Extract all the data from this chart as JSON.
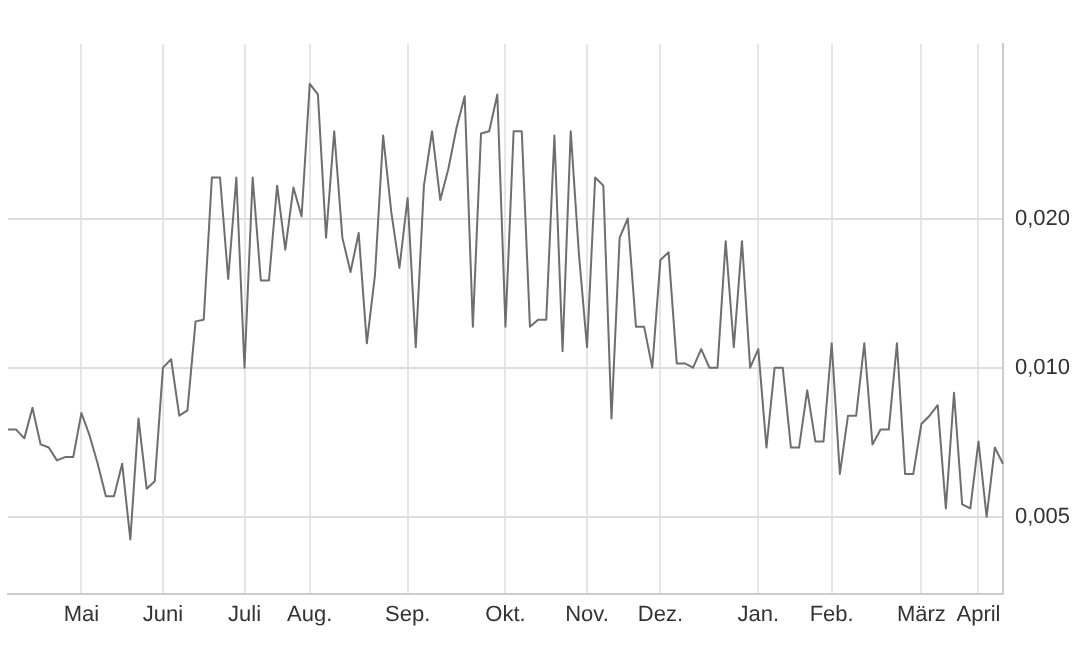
{
  "chart_data": {
    "type": "line",
    "categories": [
      null,
      null,
      null,
      null,
      null,
      null,
      null,
      null,
      null,
      "Mai",
      null,
      null,
      null,
      null,
      null,
      null,
      null,
      null,
      null,
      "Juni",
      null,
      null,
      null,
      null,
      null,
      null,
      null,
      null,
      null,
      "Juli",
      null,
      null,
      null,
      null,
      null,
      null,
      null,
      "Aug.",
      null,
      null,
      null,
      null,
      null,
      null,
      null,
      null,
      null,
      null,
      null,
      "Sep.",
      null,
      null,
      null,
      null,
      null,
      null,
      null,
      null,
      null,
      null,
      null,
      "Okt.",
      null,
      null,
      null,
      null,
      null,
      null,
      null,
      null,
      null,
      "Nov.",
      null,
      null,
      null,
      null,
      null,
      null,
      null,
      null,
      "Dez.",
      null,
      null,
      null,
      null,
      null,
      null,
      null,
      null,
      null,
      null,
      null,
      "Jan.",
      null,
      null,
      null,
      null,
      null,
      null,
      null,
      null,
      "Feb.",
      null,
      null,
      null,
      null,
      null,
      null,
      null,
      null,
      null,
      null,
      "März",
      null,
      null,
      null,
      null,
      null,
      null,
      "April",
      null,
      null,
      null
    ],
    "series": [
      {
        "color": "#6e6e6e",
        "values": [
          0.0075,
          0.0075,
          0.0072,
          0.0083,
          0.007,
          0.0069,
          0.0065,
          0.0066,
          0.0066,
          0.0081,
          0.0073,
          0.0064,
          0.0055,
          0.0055,
          0.0064,
          0.0045,
          0.0079,
          0.0057,
          0.0059,
          0.01,
          0.0104,
          0.008,
          0.0082,
          0.0124,
          0.0125,
          0.0242,
          0.0242,
          0.0151,
          0.0242,
          0.01,
          0.0242,
          0.015,
          0.015,
          0.0233,
          0.0173,
          0.0231,
          0.0202,
          0.0374,
          0.0356,
          0.0183,
          0.03,
          0.0183,
          0.0156,
          0.0187,
          0.0112,
          0.0154,
          0.0294,
          0.0206,
          0.0159,
          0.022,
          0.011,
          0.0233,
          0.03,
          0.0218,
          0.0252,
          0.0305,
          0.0353,
          0.0121,
          0.0297,
          0.03,
          0.0356,
          0.0121,
          0.03,
          0.03,
          0.0121,
          0.0125,
          0.0125,
          0.0294,
          0.0108,
          0.03,
          0.017,
          0.011,
          0.0242,
          0.0233,
          0.0079,
          0.0183,
          0.02,
          0.0121,
          0.0121,
          0.01,
          0.0165,
          0.0171,
          0.0102,
          0.0102,
          0.01,
          0.0109,
          0.01,
          0.01,
          0.018,
          0.011,
          0.018,
          0.01,
          0.0109,
          0.0069,
          0.01,
          0.01,
          0.0069,
          0.0069,
          0.009,
          0.0071,
          0.0071,
          0.0112,
          0.0061,
          0.008,
          0.008,
          0.0112,
          0.007,
          0.0075,
          0.0075,
          0.0112,
          0.0061,
          0.0061,
          0.0077,
          0.008,
          0.0084,
          0.0052,
          0.0089,
          0.0053,
          0.0052,
          0.0071,
          0.005,
          0.0069,
          0.0064
        ]
      }
    ],
    "log": "y",
    "ylim": [
      0.0035,
      0.045
    ],
    "yticks": [
      {
        "value": 0.005,
        "label": "0,005"
      },
      {
        "value": 0.01,
        "label": "0,010"
      },
      {
        "value": 0.02,
        "label": "0,020"
      }
    ],
    "grid": true,
    "legend": false,
    "marker": "none",
    "line_style": "solid"
  }
}
